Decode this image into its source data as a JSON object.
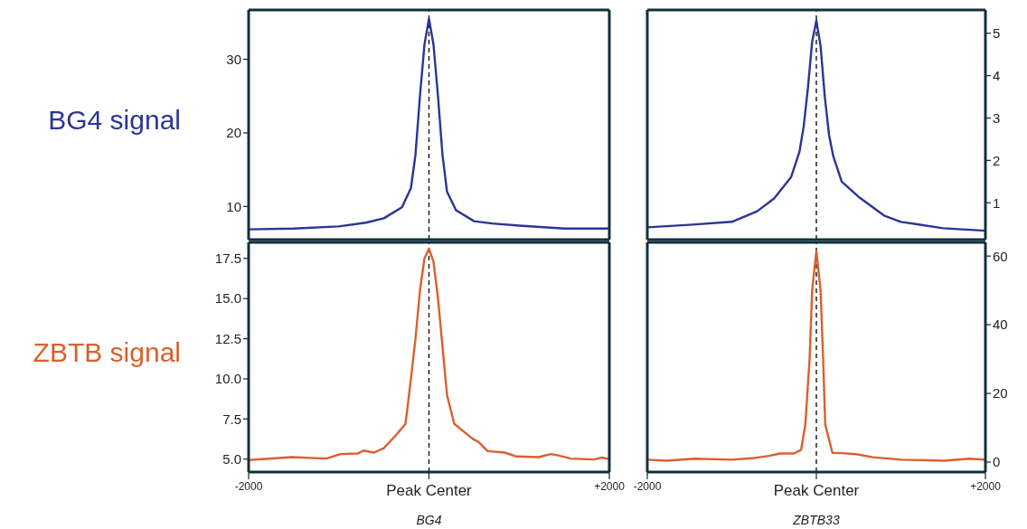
{
  "chart_data": [
    {
      "type": "line",
      "ylabel": "BG4 signal",
      "xlim": [
        -2000,
        2000
      ],
      "ylim": [
        5.5,
        36.7
      ],
      "yticks": [
        10,
        20,
        30
      ],
      "tick_labels": "y",
      "grid": false,
      "legend": false,
      "x": [
        -2000,
        -1500,
        -1000,
        -700,
        -500,
        -300,
        -200,
        -150,
        -100,
        -50,
        0,
        50,
        100,
        150,
        200,
        300,
        500,
        700,
        1000,
        1500,
        2000
      ],
      "series": [
        {
          "color": "#2b3595",
          "values": [
            6.9,
            7.0,
            7.3,
            7.8,
            8.4,
            9.9,
            12.5,
            17,
            25,
            32,
            35.5,
            32,
            25,
            17,
            12,
            9.5,
            8.0,
            7.7,
            7.4,
            7.0,
            7.0
          ]
        }
      ],
      "ref_lines": [
        {
          "axis": "x",
          "value": 0,
          "color": "#000000",
          "line_style": "dashed"
        }
      ]
    },
    {
      "type": "line",
      "xlim": [
        -2000,
        2000
      ],
      "y2lim": [
        0.13,
        5.55
      ],
      "y2ticks": [
        1,
        2,
        3,
        4,
        5
      ],
      "tick_labels": "y",
      "grid": false,
      "legend": false,
      "x": [
        -2000,
        -1500,
        -1000,
        -700,
        -500,
        -300,
        -200,
        -150,
        -100,
        -50,
        0,
        50,
        100,
        150,
        200,
        300,
        500,
        800,
        1000,
        1500,
        2000
      ],
      "series": [
        {
          "color": "#2b3595",
          "axis": "y2",
          "values": [
            0.42,
            0.48,
            0.55,
            0.8,
            1.1,
            1.6,
            2.2,
            2.8,
            3.7,
            4.8,
            5.3,
            4.7,
            3.5,
            2.6,
            2.1,
            1.5,
            1.14,
            0.7,
            0.55,
            0.4,
            0.34
          ]
        }
      ],
      "ref_lines": [
        {
          "axis": "x",
          "value": 0,
          "color": "#000000",
          "line_style": "dashed"
        }
      ]
    },
    {
      "type": "line",
      "ylabel": "ZBTB signal",
      "xlabel": "BG4",
      "xlim": [
        -2000,
        2000
      ],
      "xticks": [
        {
          "value": -2000,
          "label": "-2000"
        },
        {
          "value": 0,
          "label": "Peak Center"
        },
        {
          "value": 2000,
          "label": "+2000"
        }
      ],
      "ylim": [
        4.2,
        18.5
      ],
      "yticks": [
        {
          "value": 5,
          "label": "5.0"
        },
        {
          "value": 7.5,
          "label": "7.5"
        },
        {
          "value": 10,
          "label": "10.0"
        },
        {
          "value": 12.5,
          "label": "12.5"
        },
        {
          "value": 15,
          "label": "15.0"
        },
        {
          "value": 17.5,
          "label": "17.5"
        }
      ],
      "grid": false,
      "legend": false,
      "x": [
        -2000,
        -1520,
        -1140,
        -980,
        -790,
        -725,
        -610,
        -500,
        -375,
        -260,
        -200,
        -150,
        -100,
        -50,
        0,
        50,
        100,
        150,
        200,
        280,
        490,
        550,
        650,
        840,
        970,
        1220,
        1350,
        1445,
        1570,
        1830,
        1920,
        2000
      ],
      "series": [
        {
          "color": "#d9602e",
          "values": [
            4.95,
            5.13,
            5.04,
            5.32,
            5.35,
            5.54,
            5.41,
            5.69,
            6.44,
            7.2,
            10,
            12.5,
            15.5,
            17.5,
            18.1,
            17.3,
            15,
            12,
            9,
            7.2,
            6.25,
            6.07,
            5.5,
            5.41,
            5.17,
            5.13,
            5.32,
            5.22,
            5.04,
            4.98,
            5.1,
            5.0
          ]
        }
      ],
      "ref_lines": [
        {
          "axis": "x",
          "value": 0,
          "color": "#000000",
          "line_style": "dashed"
        }
      ]
    },
    {
      "type": "line",
      "xlabel": "ZBTB33",
      "xlim": [
        -2000,
        2000
      ],
      "xticks": [
        {
          "value": -2000,
          "label": "-2000"
        },
        {
          "value": 0,
          "label": "Peak Center"
        },
        {
          "value": 2000,
          "label": "+2000"
        }
      ],
      "y2lim": [
        -2.9,
        64
      ],
      "y2ticks": [
        0,
        20,
        40,
        60
      ],
      "grid": false,
      "legend": false,
      "x": [
        -2000,
        -1770,
        -1430,
        -1000,
        -730,
        -560,
        -430,
        -265,
        -180,
        -130,
        -80,
        -50,
        0,
        50,
        80,
        105,
        190,
        305,
        470,
        670,
        1010,
        1510,
        1810,
        2000
      ],
      "series": [
        {
          "color": "#d9602e",
          "axis": "y2",
          "values": [
            0.7,
            0.4,
            1.0,
            0.7,
            1.2,
            1.8,
            2.5,
            2.5,
            3.6,
            11,
            30,
            50,
            61.5,
            50,
            30,
            11,
            2.7,
            2.6,
            2.3,
            1.4,
            0.7,
            0.4,
            1.0,
            0.7
          ]
        }
      ],
      "ref_lines": [
        {
          "axis": "x",
          "value": 0,
          "color": "#000000",
          "line_style": "dashed"
        }
      ]
    }
  ]
}
